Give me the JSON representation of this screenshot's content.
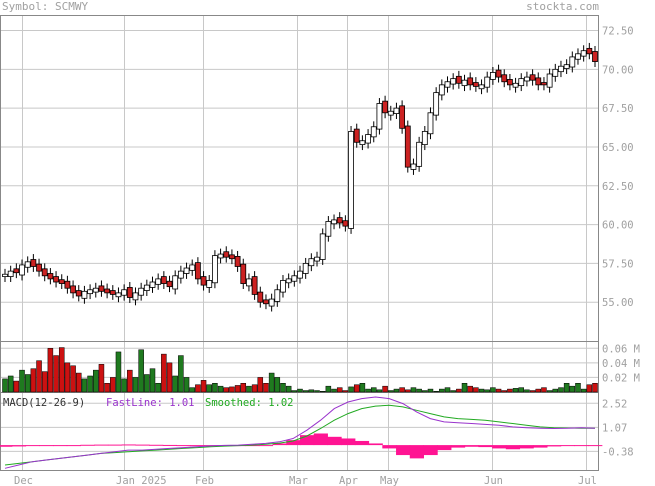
{
  "header": {
    "symbol": "Symbol: SCMWY",
    "site": "stockta.com"
  },
  "macd_legend": {
    "label": "MACD(12-26-9)",
    "fast": "FastLine: 1.01",
    "smoothed": "Smoothed: 1.02"
  },
  "colors": {
    "up_candle": "#ffffff",
    "down_candle": "#cc2222",
    "vol_up": "#1f7a1f",
    "vol_down": "#cc1111",
    "macd_fast": "#9933cc",
    "macd_smooth": "#22aa22",
    "macd_hist": "#ff1493",
    "grid": "#c8c8c8",
    "text": "#a0a0a0"
  },
  "chart_data": [
    {
      "type": "candlestick",
      "title": "Symbol: SCMWY",
      "x_ticks": [
        "Dec",
        "Jan 2025",
        "Feb",
        "Mar",
        "Apr",
        "May",
        "Jun",
        "Jul"
      ],
      "y_ticks": [
        55.0,
        57.5,
        60.0,
        62.5,
        65.0,
        67.5,
        70.0,
        72.5
      ],
      "ylim": [
        52.5,
        73.5
      ],
      "closes": [
        56.8,
        57.0,
        56.9,
        57.4,
        57.6,
        57.3,
        57.0,
        56.7,
        56.5,
        56.3,
        56.2,
        55.9,
        55.6,
        55.4,
        55.7,
        55.8,
        55.9,
        55.7,
        55.6,
        55.5,
        55.6,
        55.8,
        55.3,
        55.6,
        55.9,
        56.1,
        56.3,
        56.5,
        56.2,
        56.0,
        56.7,
        57.0,
        57.2,
        57.4,
        56.5,
        56.1,
        56.4,
        58.0,
        58.1,
        57.9,
        57.8,
        57.3,
        56.2,
        56.5,
        55.5,
        55.0,
        54.9,
        55.2,
        55.8,
        56.4,
        56.5,
        56.7,
        57.0,
        57.5,
        57.8,
        57.9,
        59.4,
        60.2,
        60.3,
        60.1,
        59.9,
        66.0,
        65.3,
        65.4,
        65.8,
        66.3,
        67.8,
        67.2,
        67.3,
        67.5,
        66.2,
        63.7,
        63.9,
        65.3,
        66.0,
        67.2,
        68.5,
        69.0,
        69.2,
        69.4,
        69.1,
        69.3,
        69.0,
        68.9,
        69.0,
        69.5,
        69.8,
        69.5,
        69.2,
        69.0,
        69.1,
        69.4,
        69.5,
        69.3,
        69.0,
        69.0,
        69.7,
        70.0,
        70.2,
        70.3,
        70.8,
        71.0,
        71.2,
        71.0,
        70.5
      ],
      "closes_up": [
        true,
        true,
        false,
        true,
        true,
        false,
        false,
        false,
        false,
        false,
        false,
        false,
        false,
        false,
        true,
        true,
        true,
        false,
        false,
        false,
        true,
        true,
        false,
        true,
        true,
        true,
        true,
        true,
        false,
        false,
        true,
        true,
        true,
        true,
        false,
        false,
        true,
        true,
        true,
        false,
        false,
        false,
        false,
        true,
        false,
        false,
        false,
        true,
        true,
        true,
        true,
        true,
        true,
        true,
        true,
        true,
        true,
        true,
        true,
        false,
        false,
        true,
        false,
        true,
        true,
        true,
        true,
        false,
        true,
        true,
        false,
        false,
        true,
        true,
        true,
        true,
        true,
        true,
        true,
        true,
        false,
        true,
        false,
        false,
        true,
        true,
        true,
        false,
        false,
        false,
        true,
        true,
        true,
        false,
        false,
        false,
        true,
        true,
        true,
        true,
        true,
        true,
        true,
        false,
        false
      ],
      "volume_ticks": [
        "0.02 M",
        "0.04 M",
        "0.06 M"
      ],
      "volume_M": [
        0.018,
        0.022,
        0.015,
        0.03,
        0.024,
        0.032,
        0.043,
        0.028,
        0.06,
        0.05,
        0.061,
        0.04,
        0.036,
        0.026,
        0.018,
        0.022,
        0.03,
        0.038,
        0.012,
        0.02,
        0.055,
        0.018,
        0.03,
        0.02,
        0.058,
        0.024,
        0.032,
        0.012,
        0.052,
        0.04,
        0.022,
        0.05,
        0.02,
        0.006,
        0.01,
        0.016,
        0.01,
        0.012,
        0.008,
        0.006,
        0.007,
        0.009,
        0.012,
        0.008,
        0.01,
        0.02,
        0.012,
        0.026,
        0.02,
        0.012,
        0.008,
        0.002,
        0.004,
        0.002,
        0.003,
        0.002,
        0.001,
        0.008,
        0.004,
        0.006,
        0.002,
        0.007,
        0.01,
        0.012,
        0.004,
        0.006,
        0.003,
        0.008,
        0.002,
        0.004,
        0.006,
        0.003,
        0.006,
        0.004,
        0.002,
        0.004,
        0.001,
        0.004,
        0.006,
        0.002,
        0.004,
        0.012,
        0.008,
        0.006,
        0.004,
        0.003,
        0.006,
        0.004,
        0.002,
        0.004,
        0.005,
        0.006,
        0.003,
        0.002,
        0.004,
        0.006,
        0.002,
        0.004,
        0.006,
        0.012,
        0.008,
        0.012,
        0.004,
        0.01,
        0.012
      ],
      "macd_ticks": [
        2.52,
        1.07,
        -0.38
      ],
      "macd_ylim": [
        -1.5,
        3.2
      ],
      "macd_fast": [
        -1.4,
        -1.2,
        -1.0,
        -0.9,
        -0.8,
        -0.7,
        -0.6,
        -0.5,
        -0.4,
        -0.3,
        -0.3,
        -0.25,
        -0.2,
        -0.15,
        -0.1,
        -0.05,
        -0.02,
        0.0,
        0.05,
        0.1,
        0.2,
        0.4,
        0.9,
        1.5,
        2.2,
        2.6,
        2.8,
        2.9,
        2.8,
        2.5,
        2.0,
        1.6,
        1.4,
        1.35,
        1.3,
        1.25,
        1.2,
        1.1,
        1.05,
        1.02,
        1.0,
        1.01,
        1.05,
        1.01
      ],
      "macd_smooth": [
        -1.2,
        -1.1,
        -1.0,
        -0.9,
        -0.8,
        -0.7,
        -0.6,
        -0.5,
        -0.45,
        -0.4,
        -0.35,
        -0.3,
        -0.25,
        -0.2,
        -0.15,
        -0.1,
        -0.06,
        -0.03,
        0.0,
        0.05,
        0.12,
        0.25,
        0.55,
        1.0,
        1.5,
        1.9,
        2.2,
        2.35,
        2.4,
        2.3,
        2.1,
        1.9,
        1.7,
        1.6,
        1.55,
        1.5,
        1.4,
        1.3,
        1.2,
        1.1,
        1.05,
        1.03,
        1.02,
        1.02
      ],
      "macd_hist": [
        -0.1,
        -0.08,
        -0.06,
        -0.05,
        -0.04,
        0.0,
        0.02,
        0.03,
        0.03,
        0.04,
        0.03,
        0.02,
        0.01,
        0.0,
        -0.02,
        -0.03,
        -0.05,
        -0.06,
        -0.04,
        -0.02,
        0.1,
        0.3,
        0.6,
        0.7,
        0.5,
        0.4,
        0.25,
        0.1,
        -0.2,
        -0.6,
        -0.8,
        -0.6,
        -0.3,
        -0.15,
        -0.1,
        -0.12,
        -0.2,
        -0.25,
        -0.2,
        -0.15,
        -0.08,
        -0.03,
        0.0,
        0.0
      ]
    }
  ]
}
